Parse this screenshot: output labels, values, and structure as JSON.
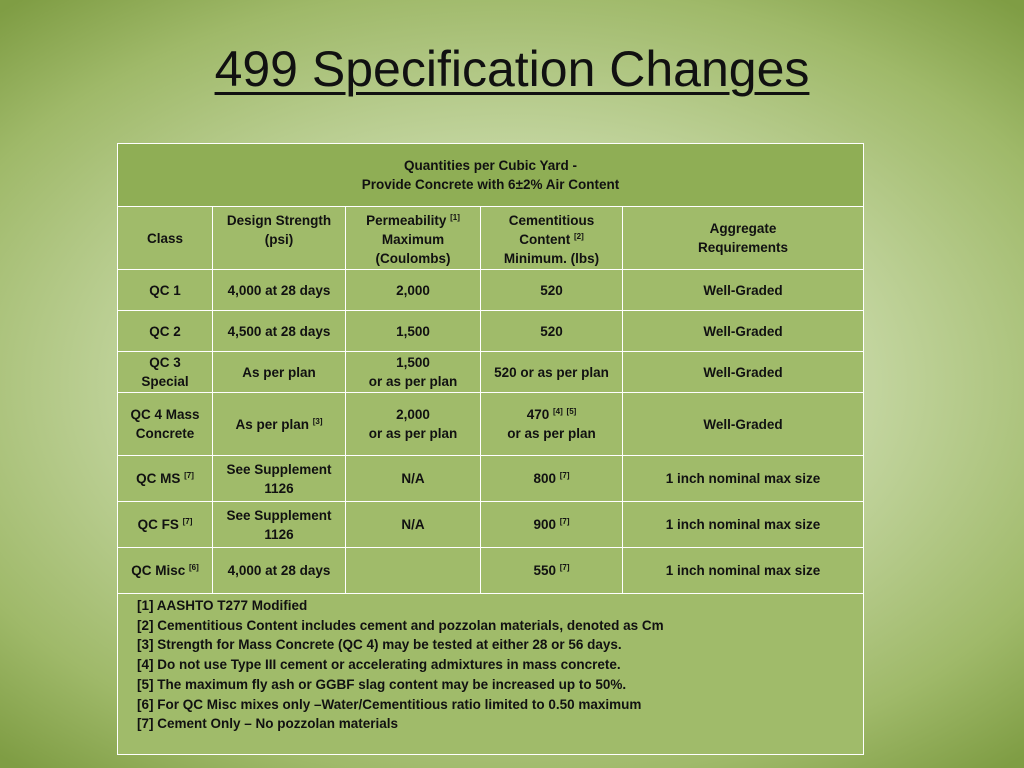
{
  "title": "499 Specification Changes",
  "header": {
    "line1": "Quantities per Cubic Yard -",
    "line2": "Provide Concrete with 6±2% Air Content"
  },
  "columns": {
    "class": "Class",
    "strength_l1": "Design Strength",
    "strength_l2": "(psi)",
    "perm_l1": "Permeability",
    "perm_sup": "[1]",
    "perm_l2": "Maximum",
    "perm_l3": "(Coulombs)",
    "cem_l1": "Cementitious",
    "cem_l2": "Content",
    "cem_sup": "[2]",
    "cem_l3": "Minimum.  (lbs)",
    "agg_l1": "Aggregate",
    "agg_l2": "Requirements"
  },
  "rows": [
    {
      "class": "QC 1",
      "strength": "4,000 at 28 days",
      "permeability": "2,000",
      "cementitious": "520",
      "aggregate": "Well-Graded"
    },
    {
      "class": "QC 2",
      "strength": "4,500 at 28 days",
      "permeability": "1,500",
      "cementitious": "520",
      "aggregate": "Well-Graded"
    },
    {
      "class_l1": "QC 3",
      "class_l2": "Special",
      "strength": "As per plan",
      "perm_l1": "1,500",
      "perm_l2": "or as per plan",
      "cementitious": "520 or as per plan",
      "aggregate": "Well-Graded"
    },
    {
      "class_l1": "QC 4 Mass",
      "class_l2": "Concrete",
      "strength": "As per plan",
      "strength_sup": "[3]",
      "perm_l1": "2,000",
      "perm_l2": "or as per plan",
      "cem_l1": "470",
      "cem_sup1": "[4]",
      "cem_sup2": "[5]",
      "cem_l2": "or as per plan",
      "aggregate": "Well-Graded"
    },
    {
      "class": "QC MS",
      "class_sup": "[7]",
      "strength_l1": "See Supplement",
      "strength_l2": "1126",
      "permeability": "N/A",
      "cementitious": "800",
      "cem_sup": "[7]",
      "aggregate": "1 inch nominal max size"
    },
    {
      "class": "QC FS",
      "class_sup": "[7]",
      "strength_l1": "See Supplement",
      "strength_l2": "1126",
      "permeability": "N/A",
      "cementitious": "900",
      "cem_sup": "[7]",
      "aggregate": "1 inch nominal max size"
    },
    {
      "class": "QC Misc",
      "class_sup": "[6]",
      "strength": "4,000 at 28 days",
      "permeability": "",
      "cementitious": "550",
      "cem_sup": "[7]",
      "aggregate": "1 inch nominal max size"
    }
  ],
  "notes": [
    "[1]  AASHTO T277 Modified",
    "[2]  Cementitious Content includes cement and pozzolan materials, denoted as Cm",
    "[3] Strength for Mass Concrete (QC 4) may  be tested at either 28 or  56 days.",
    "[4] Do not use Type III cement or accelerating admixtures in mass concrete.",
    "[5] The maximum fly ash or GGBF slag content may be increased up to 50%.",
    "[6] For QC Misc mixes only –Water/Cementitious ratio limited to 0.50 maximum",
    "[7] Cement Only – No pozzolan materials"
  ],
  "colors": {
    "header_bg": "#8fae55",
    "cell_bg": "#a0bb6a",
    "grid_line": "#ffffff"
  }
}
